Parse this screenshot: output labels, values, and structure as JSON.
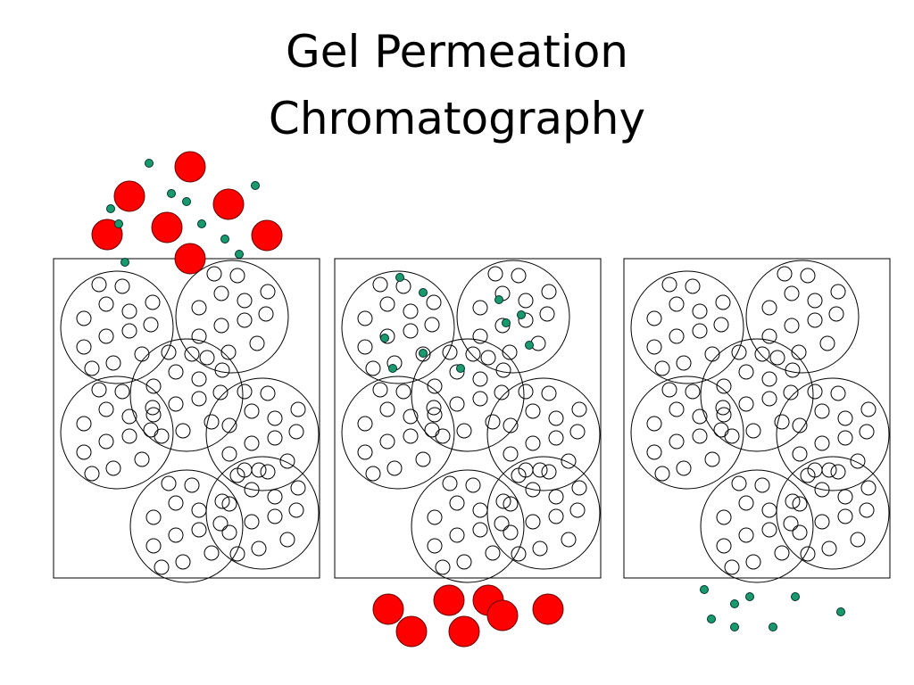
{
  "title": {
    "line1": "Gel Permeation",
    "line2": "Chromatography"
  }
}
